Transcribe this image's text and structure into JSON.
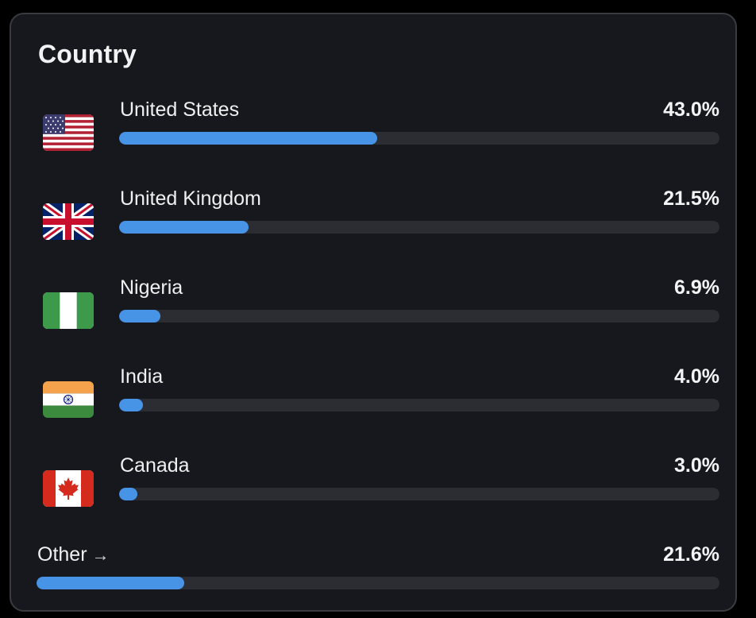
{
  "card": {
    "title": "Country"
  },
  "countries": [
    {
      "name": "United States",
      "percent_label": "43.0%",
      "fraction": 0.43,
      "flag": "us-flag-icon"
    },
    {
      "name": "United Kingdom",
      "percent_label": "21.5%",
      "fraction": 0.215,
      "flag": "uk-flag-icon"
    },
    {
      "name": "Nigeria",
      "percent_label": "6.9%",
      "fraction": 0.069,
      "flag": "nigeria-flag-icon"
    },
    {
      "name": "India",
      "percent_label": "4.0%",
      "fraction": 0.04,
      "flag": "india-flag-icon"
    },
    {
      "name": "Canada",
      "percent_label": "3.0%",
      "fraction": 0.03,
      "flag": "canada-flag-icon"
    }
  ],
  "other": {
    "label": "Other",
    "arrow": "→",
    "percent_label": "21.6%",
    "fraction": 0.216
  },
  "colors": {
    "bar_fill": "#4793e6",
    "bar_track": "#2c2d33",
    "card_bg": "#17181d"
  }
}
